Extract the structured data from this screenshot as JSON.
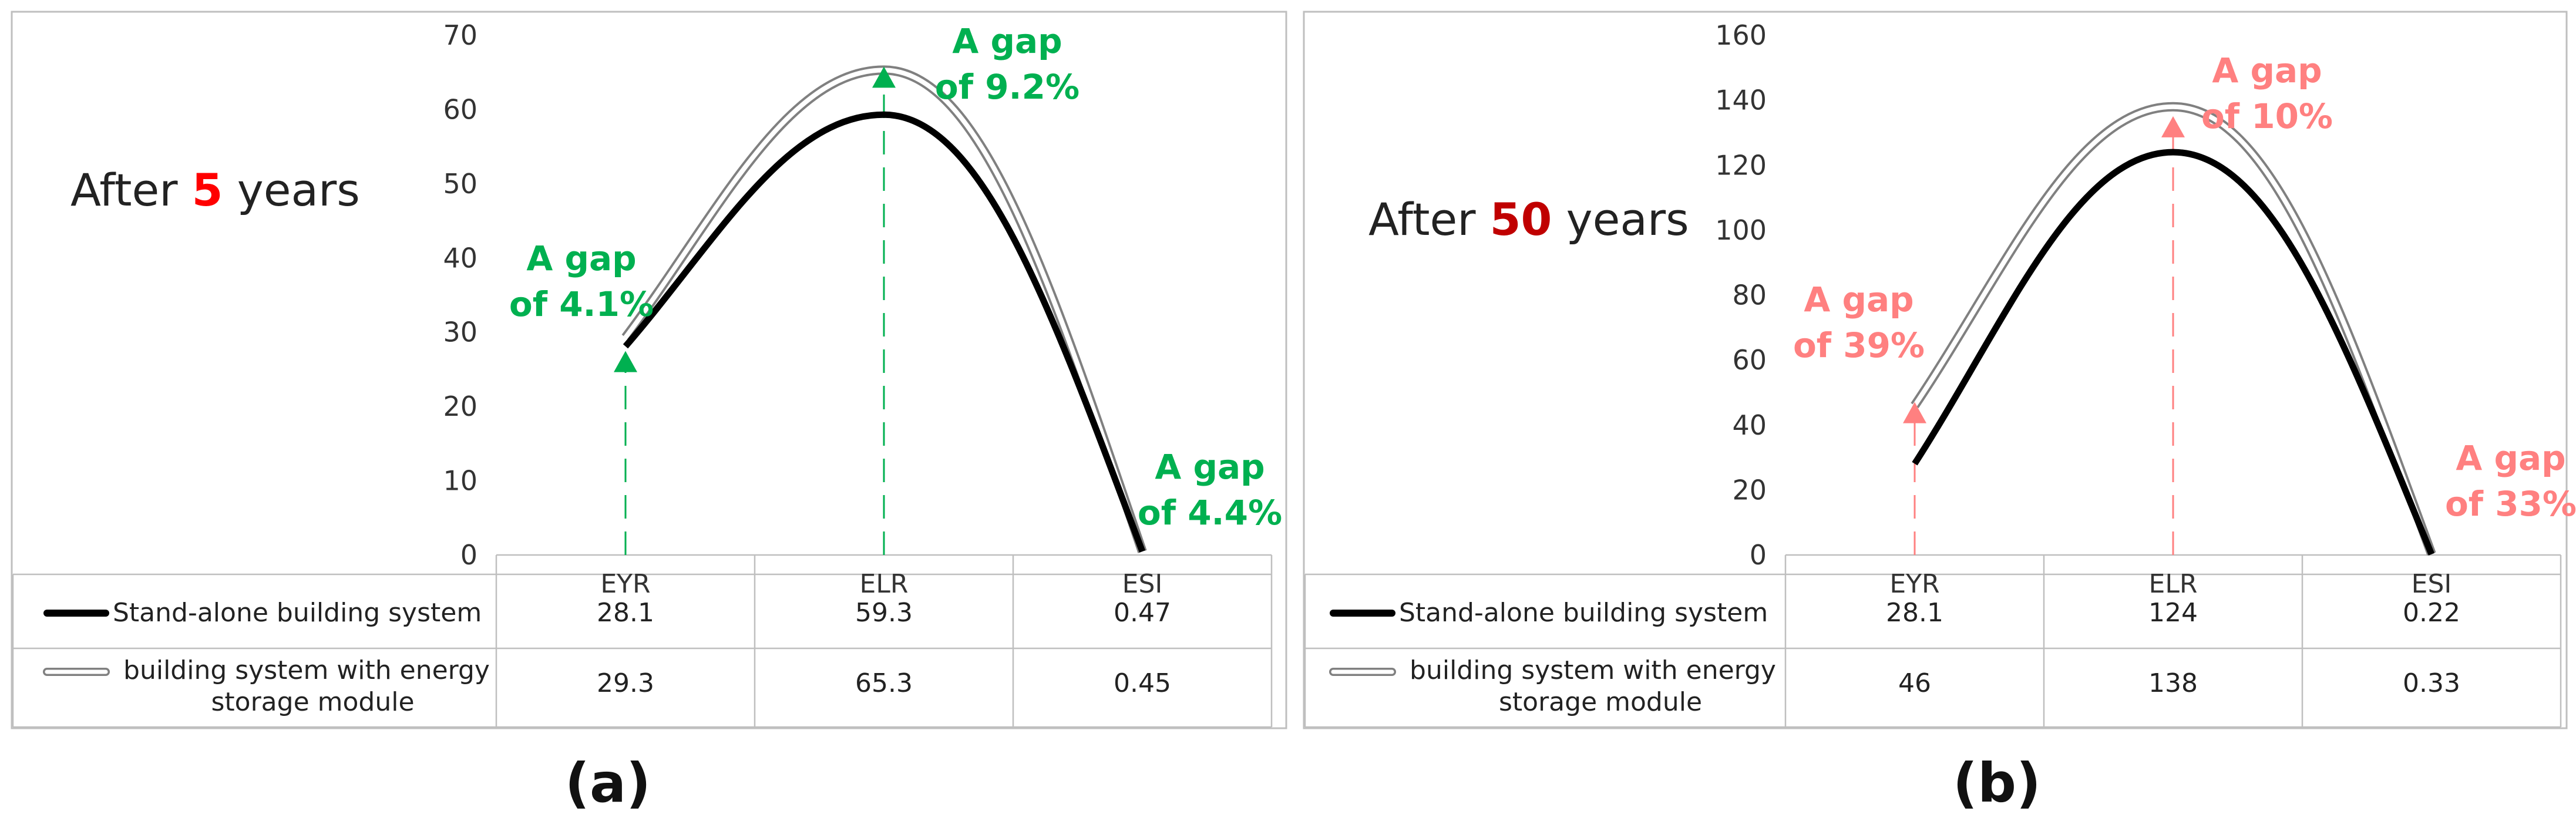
{
  "chart_data": [
    {
      "panel": "(a)",
      "type": "line",
      "heading_prefix": "After ",
      "heading_number": "5",
      "heading_suffix": " years",
      "categories": [
        "EYR",
        "ELR",
        "ESI"
      ],
      "ylim": [
        0,
        70
      ],
      "yticks": [
        0,
        10,
        20,
        30,
        40,
        50,
        60,
        70
      ],
      "series": [
        {
          "name": "Stand-alone building system",
          "values": [
            28.1,
            59.3,
            0.47
          ],
          "value_labels": [
            "28.1",
            "59.3",
            "0.47"
          ]
        },
        {
          "name": "building system with energy storage module",
          "name_lines": [
            "building system with energy",
            "storage module"
          ],
          "values": [
            29.3,
            65.3,
            0.45
          ],
          "value_labels": [
            "29.3",
            "65.3",
            "0.45"
          ]
        }
      ],
      "annotations": [
        {
          "category": "EYR",
          "lines": [
            "A gap",
            "of 4.1%"
          ]
        },
        {
          "category": "ELR",
          "lines": [
            "A gap",
            "of 9.2%"
          ]
        },
        {
          "category": "ESI",
          "lines": [
            "A gap",
            "of 4.4%"
          ]
        }
      ],
      "grid": false,
      "data_table": true
    },
    {
      "panel": "(b)",
      "type": "line",
      "heading_prefix": "After ",
      "heading_number": "50",
      "heading_suffix": " years",
      "categories": [
        "EYR",
        "ELR",
        "ESI"
      ],
      "ylim": [
        0,
        160
      ],
      "yticks": [
        0,
        20,
        40,
        60,
        80,
        100,
        120,
        140,
        160
      ],
      "series": [
        {
          "name": "Stand-alone building system",
          "values": [
            28.1,
            124,
            0.22
          ],
          "value_labels": [
            "28.1",
            "124",
            "0.22"
          ]
        },
        {
          "name": "building system with energy storage module",
          "name_lines": [
            "building system with energy",
            "storage module"
          ],
          "values": [
            46,
            138,
            0.33
          ],
          "value_labels": [
            "46",
            "138",
            "0.33"
          ]
        }
      ],
      "annotations": [
        {
          "category": "EYR",
          "lines": [
            "A gap",
            "of 39%"
          ]
        },
        {
          "category": "ELR",
          "lines": [
            "A gap",
            "of 10%"
          ]
        },
        {
          "category": "ESI",
          "lines": [
            "A gap",
            "of 33%"
          ]
        }
      ],
      "grid": false,
      "data_table": true
    }
  ],
  "colors": {
    "standalone": "#000000",
    "storage_outline": "#808080",
    "panel_a_accent": "#00B050",
    "panel_b_accent": "#FF8080",
    "heading_a_number": "#FF0000",
    "heading_b_number": "#C00000",
    "frame": "#BFBFBF"
  }
}
